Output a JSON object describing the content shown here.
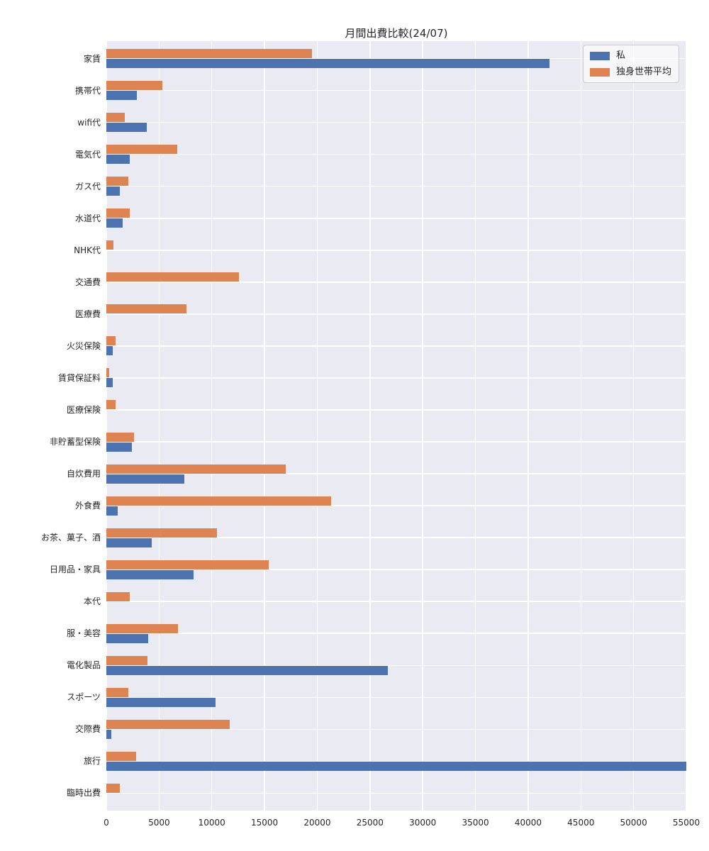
{
  "title": "月間出費比較(24/07)",
  "colors": {
    "series_me": "#4C72B0",
    "series_avg": "#DD8452",
    "plot_background": "#EAEAF2",
    "gridline": "#FFFFFF",
    "text": "#262626"
  },
  "legend": {
    "entries": [
      {
        "label": "私",
        "color": "#4C72B0"
      },
      {
        "label": "独身世帯平均",
        "color": "#DD8452"
      }
    ],
    "position": "upper right"
  },
  "chart_data": {
    "type": "bar",
    "orientation": "horizontal",
    "title": "月間出費比較(24/07)",
    "categories": [
      "家賃",
      "携帯代",
      "wifi代",
      "電気代",
      "ガス代",
      "水道代",
      "NHK代",
      "交通費",
      "医療費",
      "火災保険",
      "賃貸保証料",
      "医療保険",
      "非貯蓄型保険",
      "自炊費用",
      "外食費",
      "お茶、菓子、酒",
      "日用品・家具",
      "本代",
      "服・美容",
      "電化製品",
      "スポーツ",
      "交際費",
      "旅行",
      "臨時出費"
    ],
    "series": [
      {
        "name": "私",
        "color": "#4C72B0",
        "values": [
          42000,
          2900,
          3800,
          2200,
          1250,
          1550,
          0,
          0,
          0,
          600,
          580,
          0,
          2400,
          7400,
          1100,
          4300,
          8300,
          0,
          4000,
          26700,
          10350,
          500,
          55000,
          0
        ]
      },
      {
        "name": "独身世帯平均",
        "color": "#DD8452",
        "values": [
          19500,
          5300,
          1750,
          6700,
          2100,
          2200,
          700,
          12600,
          7600,
          850,
          250,
          850,
          2600,
          17000,
          21300,
          10500,
          15400,
          2250,
          6800,
          3900,
          2100,
          11700,
          2800,
          1300
        ]
      }
    ],
    "xlim": [
      0,
      55000
    ],
    "xticks": [
      0,
      5000,
      10000,
      15000,
      20000,
      25000,
      30000,
      35000,
      40000,
      45000,
      50000,
      55000
    ],
    "grid": true,
    "grid_style": "seaborn-darkgrid",
    "legend_position": "upper right"
  }
}
